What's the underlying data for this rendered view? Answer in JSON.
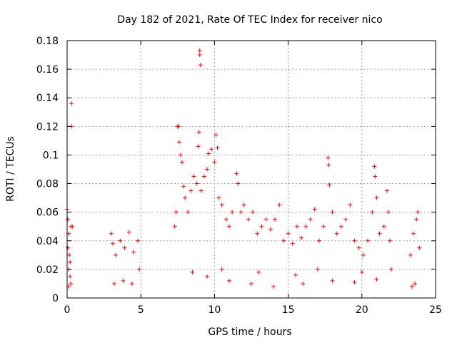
{
  "chart_data": {
    "type": "scatter",
    "title": "Day 182 of 2021, Rate Of TEC Index for receiver nico",
    "xlabel": "GPS time / hours",
    "ylabel": "ROTI / TECUs",
    "xlim": [
      0,
      25
    ],
    "ylim": [
      0,
      0.18
    ],
    "x_ticks": [
      0,
      5,
      10,
      15,
      20,
      25
    ],
    "y_ticks": [
      0,
      0.02,
      0.04,
      0.06,
      0.08,
      0.1,
      0.12,
      0.14,
      0.16,
      0.18
    ],
    "x_tick_labels": [
      "0",
      "5",
      "10",
      "15",
      "20",
      "25"
    ],
    "y_tick_labels": [
      "0",
      "0.02",
      "0.04",
      "0.06",
      "0.08",
      "0.1",
      "0.12",
      "0.14",
      "0.16",
      "0.18"
    ],
    "grid": true,
    "marker": "+",
    "color": "#ff0000",
    "series": [
      {
        "points": [
          [
            0.0,
            0.062
          ],
          [
            0.05,
            0.055
          ],
          [
            0.05,
            0.035
          ],
          [
            0.1,
            0.045
          ],
          [
            0.1,
            0.02
          ],
          [
            0.15,
            0.03
          ],
          [
            0.2,
            0.025
          ],
          [
            0.25,
            0.05
          ],
          [
            0.25,
            0.01
          ],
          [
            0.3,
            0.136
          ],
          [
            0.3,
            0.12
          ],
          [
            0.35,
            0.05
          ],
          [
            0.2,
            0.015
          ],
          [
            0.1,
            0.008
          ],
          [
            3.0,
            0.045
          ],
          [
            3.1,
            0.038
          ],
          [
            3.3,
            0.03
          ],
          [
            3.6,
            0.04
          ],
          [
            3.9,
            0.035
          ],
          [
            4.2,
            0.046
          ],
          [
            4.5,
            0.032
          ],
          [
            4.8,
            0.04
          ],
          [
            4.9,
            0.02
          ],
          [
            3.2,
            0.01
          ],
          [
            3.8,
            0.012
          ],
          [
            4.4,
            0.01
          ],
          [
            7.3,
            0.05
          ],
          [
            7.4,
            0.06
          ],
          [
            7.5,
            0.12
          ],
          [
            7.55,
            0.12
          ],
          [
            7.6,
            0.109
          ],
          [
            7.7,
            0.1
          ],
          [
            7.8,
            0.095
          ],
          [
            7.9,
            0.078
          ],
          [
            8.0,
            0.07
          ],
          [
            8.2,
            0.06
          ],
          [
            8.4,
            0.075
          ],
          [
            8.6,
            0.085
          ],
          [
            8.8,
            0.08
          ],
          [
            8.9,
            0.106
          ],
          [
            8.95,
            0.116
          ],
          [
            9.0,
            0.173
          ],
          [
            9.0,
            0.17
          ],
          [
            9.05,
            0.163
          ],
          [
            9.1,
            0.075
          ],
          [
            9.3,
            0.085
          ],
          [
            9.5,
            0.09
          ],
          [
            9.6,
            0.101
          ],
          [
            9.8,
            0.104
          ],
          [
            10.0,
            0.095
          ],
          [
            10.1,
            0.114
          ],
          [
            10.2,
            0.105
          ],
          [
            10.3,
            0.07
          ],
          [
            10.5,
            0.065
          ],
          [
            10.8,
            0.055
          ],
          [
            11.0,
            0.05
          ],
          [
            11.2,
            0.06
          ],
          [
            11.5,
            0.087
          ],
          [
            11.6,
            0.08
          ],
          [
            11.8,
            0.06
          ],
          [
            12.0,
            0.065
          ],
          [
            12.3,
            0.055
          ],
          [
            12.6,
            0.06
          ],
          [
            12.9,
            0.045
          ],
          [
            13.2,
            0.05
          ],
          [
            13.5,
            0.055
          ],
          [
            13.8,
            0.048
          ],
          [
            14.1,
            0.055
          ],
          [
            14.4,
            0.065
          ],
          [
            14.7,
            0.04
          ],
          [
            15.0,
            0.045
          ],
          [
            15.3,
            0.038
          ],
          [
            15.6,
            0.05
          ],
          [
            15.9,
            0.042
          ],
          [
            16.2,
            0.05
          ],
          [
            16.5,
            0.055
          ],
          [
            16.8,
            0.062
          ],
          [
            17.1,
            0.04
          ],
          [
            17.4,
            0.05
          ],
          [
            17.7,
            0.098
          ],
          [
            17.75,
            0.093
          ],
          [
            17.8,
            0.079
          ],
          [
            18.0,
            0.06
          ],
          [
            18.3,
            0.045
          ],
          [
            18.6,
            0.05
          ],
          [
            18.9,
            0.055
          ],
          [
            19.2,
            0.065
          ],
          [
            19.5,
            0.04
          ],
          [
            19.8,
            0.035
          ],
          [
            20.1,
            0.03
          ],
          [
            20.4,
            0.04
          ],
          [
            20.7,
            0.06
          ],
          [
            20.85,
            0.092
          ],
          [
            20.9,
            0.085
          ],
          [
            21.0,
            0.07
          ],
          [
            21.2,
            0.045
          ],
          [
            21.5,
            0.05
          ],
          [
            21.7,
            0.075
          ],
          [
            21.8,
            0.06
          ],
          [
            21.9,
            0.04
          ],
          [
            22.0,
            0.02
          ],
          [
            23.3,
            0.03
          ],
          [
            23.5,
            0.045
          ],
          [
            23.7,
            0.055
          ],
          [
            23.8,
            0.06
          ],
          [
            23.9,
            0.035
          ],
          [
            23.4,
            0.008
          ],
          [
            23.6,
            0.01
          ],
          [
            8.5,
            0.018
          ],
          [
            9.5,
            0.015
          ],
          [
            11.0,
            0.012
          ],
          [
            12.5,
            0.01
          ],
          [
            14.0,
            0.008
          ],
          [
            16.0,
            0.01
          ],
          [
            18.0,
            0.012
          ],
          [
            19.5,
            0.011
          ],
          [
            21.0,
            0.013
          ],
          [
            10.5,
            0.02
          ],
          [
            13.0,
            0.018
          ],
          [
            15.5,
            0.016
          ],
          [
            17.0,
            0.02
          ],
          [
            20.0,
            0.018
          ]
        ]
      }
    ]
  }
}
